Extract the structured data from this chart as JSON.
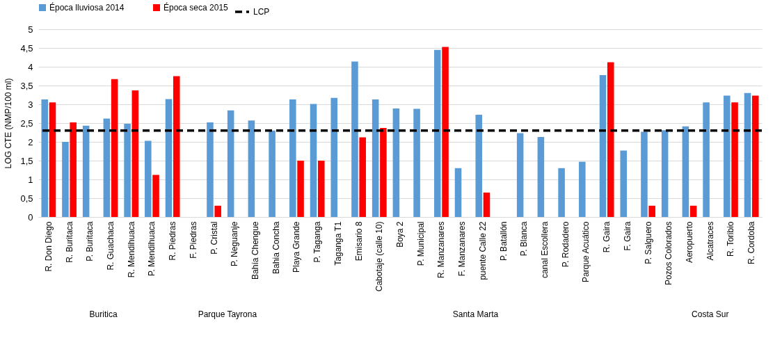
{
  "chart_data": {
    "type": "bar",
    "ylabel": "LOG CTE  (NMP/100 ml)",
    "categories": [
      "R. Don Diego",
      "R. Buritaca",
      "P. Buritaca",
      "R. Guachaca",
      "R. Mendihuaca",
      "P. Mendihuaca",
      "R. Piedras",
      "F. Piedras",
      "P. Cristal",
      "P. Neguanje",
      "Bahía Chengue",
      "Bahia Concha",
      "Playa Grande",
      "P. Taganga",
      "Taganga T1",
      "Emisario 8",
      "Cabotaje (calle 10)",
      "Boya 2",
      "P. Municipal",
      "R. Manzanares",
      "F. Manzanares",
      "puente Calle 22",
      "P. Batallón",
      "P. Blanca",
      "canal Escollera",
      "P. Rodadero",
      "Parque Acuático",
      "R. Gaira",
      "F. Gaira",
      "P. Salguero",
      "Pozos Colorados",
      "Aeropuerto",
      "Alcatraces",
      "R. Toribio",
      "R. Cordoba"
    ],
    "series": [
      {
        "name": "Época lluviosa 2014",
        "color": "#5b9bd5",
        "values": [
          3.13,
          2.0,
          2.43,
          2.62,
          2.48,
          2.03,
          3.14,
          null,
          2.52,
          2.84,
          2.57,
          2.3,
          3.13,
          3.01,
          3.17,
          4.14,
          3.13,
          2.89,
          2.88,
          4.45,
          1.3,
          2.72,
          null,
          2.23,
          2.13,
          1.3,
          1.47,
          3.78,
          1.77,
          2.27,
          2.31,
          2.41,
          3.05,
          3.23,
          3.3
        ]
      },
      {
        "name": "Época seca 2015",
        "color": "#ff0000",
        "values": [
          3.05,
          2.52,
          null,
          3.67,
          3.37,
          1.12,
          3.75,
          null,
          0.3,
          null,
          null,
          null,
          1.5,
          1.5,
          null,
          2.12,
          2.37,
          null,
          null,
          4.53,
          null,
          0.65,
          null,
          null,
          null,
          null,
          null,
          4.12,
          null,
          0.3,
          null,
          0.3,
          null,
          3.05,
          3.23
        ]
      }
    ],
    "ref_lines": [
      {
        "axis": "y",
        "value": 2.3,
        "label": "LCP",
        "color": "#000000",
        "line_style": "dashed"
      }
    ],
    "ylim": [
      0,
      5
    ],
    "yticks": [
      0,
      {
        "value": 0.5,
        "label": "0,5"
      },
      1,
      {
        "value": 1.5,
        "label": "1,5"
      },
      2,
      {
        "value": 2.5,
        "label": "2,5"
      },
      3,
      {
        "value": 3.5,
        "label": "3,5"
      },
      4,
      {
        "value": 4.5,
        "label": "4,5"
      },
      5
    ],
    "annotations": [
      "Buritica",
      "Parque Tayrona",
      "Santa Marta",
      "Costa Sur"
    ],
    "grid": "y",
    "legend": "top"
  }
}
